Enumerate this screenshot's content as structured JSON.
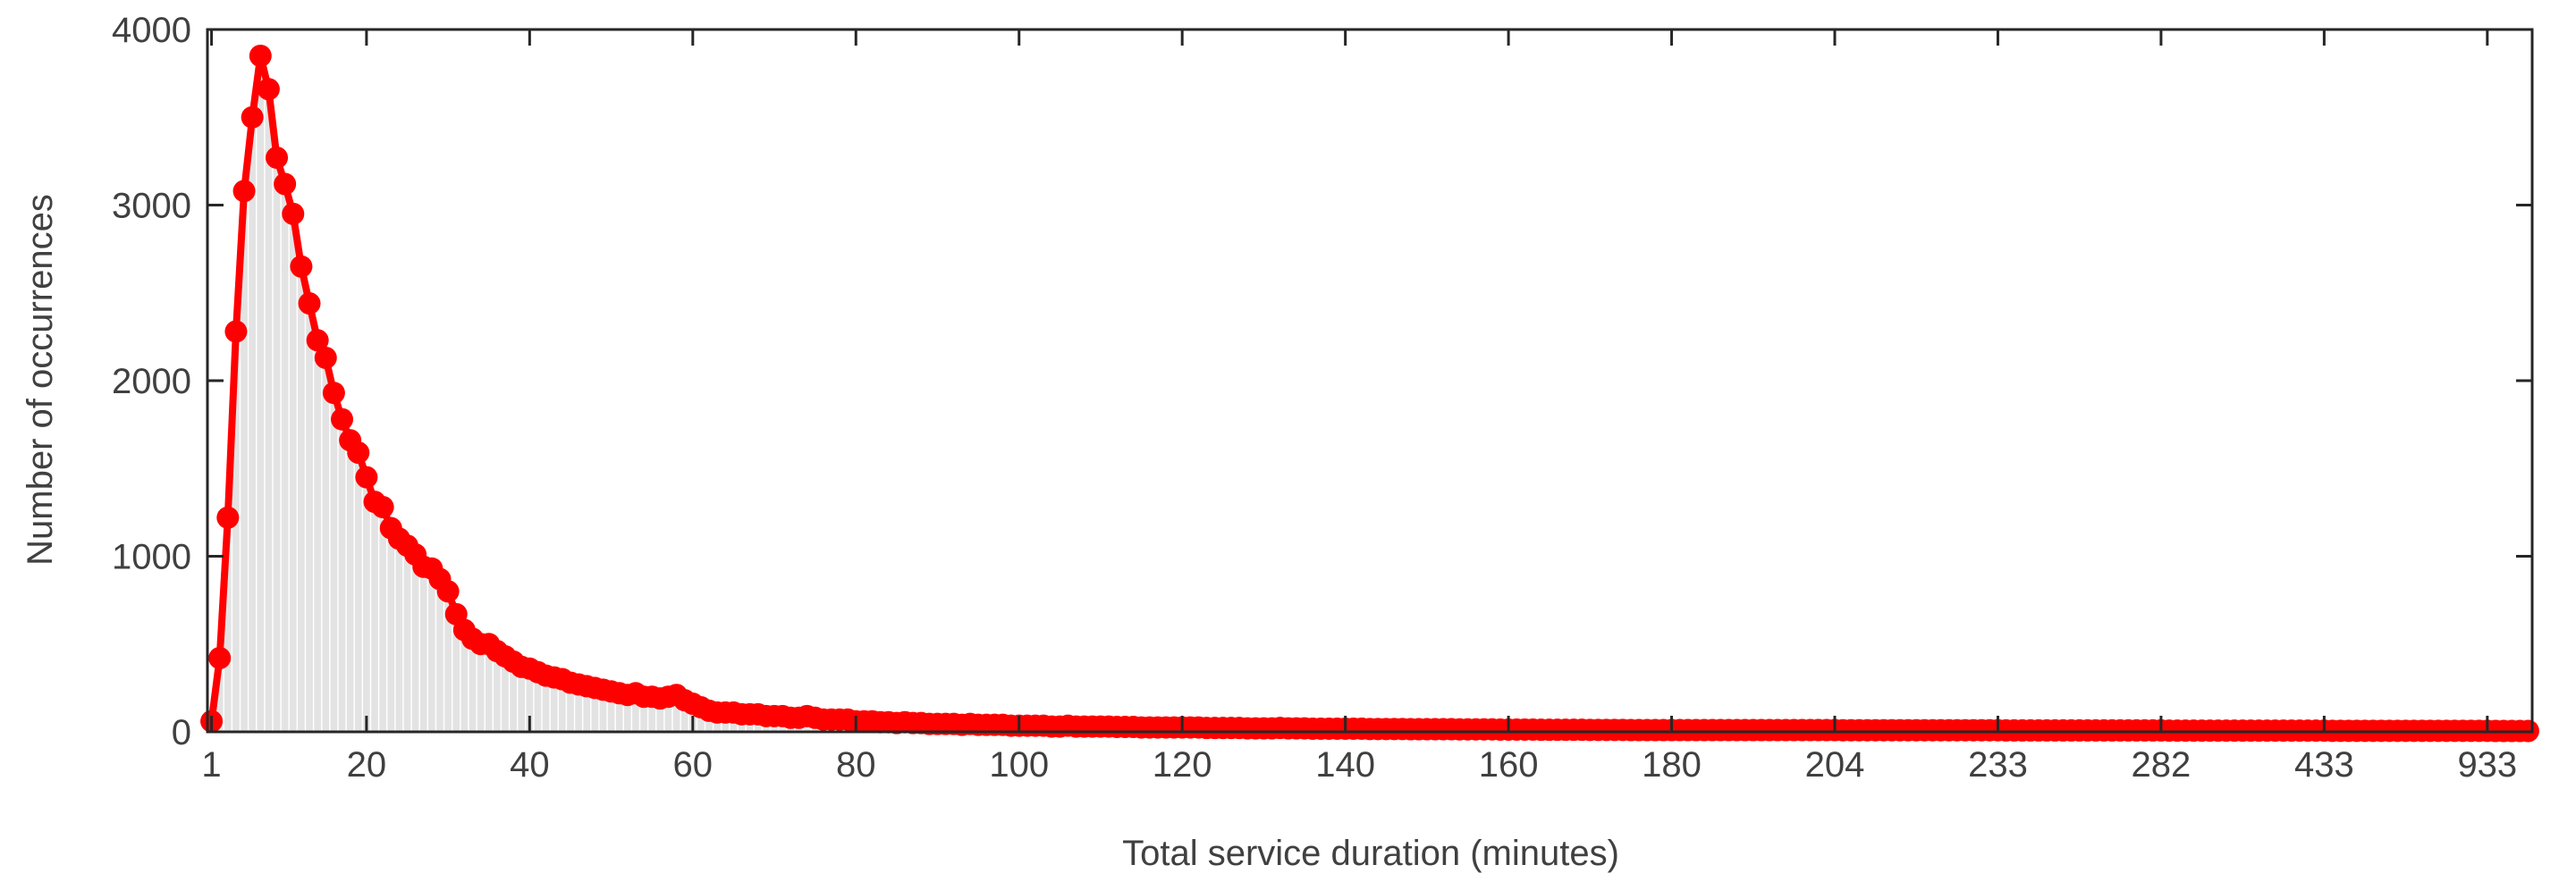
{
  "chart_data": {
    "type": "bar",
    "x_label": "Total service duration (minutes)",
    "y_label": "Number of occurrences",
    "color": "#e3e3e3",
    "line_color": "#ff0000",
    "ylim": [
      0,
      4000
    ],
    "yticks": [
      0,
      1000,
      2000,
      3000,
      4000
    ],
    "categories": [
      "1",
      null,
      null,
      null,
      null,
      null,
      null,
      null,
      null,
      null,
      null,
      null,
      null,
      null,
      null,
      null,
      null,
      null,
      null,
      "20",
      null,
      null,
      null,
      null,
      null,
      null,
      null,
      null,
      null,
      null,
      null,
      null,
      null,
      null,
      null,
      null,
      null,
      null,
      null,
      "40",
      null,
      null,
      null,
      null,
      null,
      null,
      null,
      null,
      null,
      null,
      null,
      null,
      null,
      null,
      null,
      null,
      null,
      null,
      null,
      "60",
      null,
      null,
      null,
      null,
      null,
      null,
      null,
      null,
      null,
      null,
      null,
      null,
      null,
      null,
      null,
      null,
      null,
      null,
      null,
      "80",
      null,
      null,
      null,
      null,
      null,
      null,
      null,
      null,
      null,
      null,
      null,
      null,
      null,
      null,
      null,
      null,
      null,
      null,
      null,
      "100",
      null,
      null,
      null,
      null,
      null,
      null,
      null,
      null,
      null,
      null,
      null,
      null,
      null,
      null,
      null,
      null,
      null,
      null,
      null,
      "120",
      null,
      null,
      null,
      null,
      null,
      null,
      null,
      null,
      null,
      null,
      null,
      null,
      null,
      null,
      null,
      null,
      null,
      null,
      null,
      "140",
      null,
      null,
      null,
      null,
      null,
      null,
      null,
      null,
      null,
      null,
      null,
      null,
      null,
      null,
      null,
      null,
      null,
      null,
      null,
      "160",
      null,
      null,
      null,
      null,
      null,
      null,
      null,
      null,
      null,
      null,
      null,
      null,
      null,
      null,
      null,
      null,
      null,
      null,
      null,
      "180",
      null,
      null,
      null,
      null,
      null,
      null,
      null,
      null,
      null,
      null,
      null,
      null,
      null,
      null,
      null,
      null,
      null,
      null,
      null,
      "204",
      null,
      null,
      null,
      null,
      null,
      null,
      null,
      null,
      null,
      null,
      null,
      null,
      null,
      null,
      null,
      null,
      null,
      null,
      null,
      "233",
      null,
      null,
      null,
      null,
      null,
      null,
      null,
      null,
      null,
      null,
      null,
      null,
      null,
      null,
      null,
      null,
      null,
      null,
      null,
      "282",
      null,
      null,
      null,
      null,
      null,
      null,
      null,
      null,
      null,
      null,
      null,
      null,
      null,
      null,
      null,
      null,
      null,
      null,
      null,
      "433",
      null,
      null,
      null,
      null,
      null,
      null,
      null,
      null,
      null,
      null,
      null,
      null,
      null,
      null,
      null,
      null,
      null,
      null,
      null,
      "933",
      null,
      null,
      null,
      null,
      null
    ],
    "values": [
      60,
      420,
      1220,
      2280,
      3080,
      3500,
      3850,
      3660,
      3270,
      3120,
      2950,
      2650,
      2440,
      2230,
      2130,
      1930,
      1780,
      1660,
      1590,
      1450,
      1310,
      1280,
      1160,
      1100,
      1060,
      1010,
      940,
      930,
      870,
      800,
      670,
      580,
      530,
      500,
      500,
      460,
      430,
      400,
      370,
      360,
      340,
      320,
      310,
      300,
      280,
      270,
      260,
      250,
      240,
      230,
      220,
      210,
      220,
      200,
      200,
      190,
      200,
      210,
      180,
      160,
      140,
      120,
      110,
      110,
      110,
      100,
      100,
      100,
      90,
      90,
      90,
      80,
      80,
      90,
      80,
      70,
      70,
      70,
      70,
      60,
      60,
      60,
      55,
      55,
      50,
      55,
      50,
      50,
      45,
      45,
      45,
      45,
      40,
      45,
      40,
      40,
      40,
      40,
      35,
      35,
      35,
      35,
      35,
      30,
      30,
      35,
      30,
      30,
      30,
      30,
      30,
      28,
      28,
      28,
      25,
      25,
      25,
      25,
      25,
      25,
      25,
      25,
      22,
      22,
      22,
      22,
      22,
      20,
      20,
      20,
      20,
      22,
      20,
      20,
      20,
      18,
      18,
      18,
      18,
      18,
      18,
      18,
      16,
      16,
      16,
      16,
      16,
      15,
      15,
      15,
      15,
      15,
      15,
      14,
      14,
      14,
      14,
      14,
      13,
      13,
      13,
      13,
      13,
      12,
      12,
      12,
      12,
      12,
      12,
      11,
      11,
      11,
      11,
      11,
      10,
      10,
      10,
      10,
      10,
      10,
      10,
      10,
      10,
      10,
      10,
      10,
      10,
      10,
      10,
      10,
      10,
      10,
      10,
      10,
      10,
      10,
      10,
      10,
      10,
      10,
      9,
      9,
      9,
      9,
      9,
      9,
      9,
      9,
      9,
      9,
      9,
      9,
      9,
      9,
      9,
      9,
      9,
      9,
      9,
      9,
      8,
      8,
      8,
      8,
      8,
      8,
      8,
      8,
      8,
      8,
      8,
      8,
      8,
      8,
      8,
      8,
      8,
      8,
      8,
      8,
      7,
      7,
      7,
      7,
      7,
      7,
      7,
      7,
      7,
      7,
      7,
      7,
      7,
      7,
      7,
      7,
      7,
      7,
      7,
      7,
      6,
      6,
      6,
      6,
      6,
      6,
      6,
      6,
      6,
      6,
      6,
      6,
      6,
      6,
      6,
      6,
      6,
      6,
      6,
      6,
      5,
      5,
      5,
      5,
      5
    ]
  }
}
